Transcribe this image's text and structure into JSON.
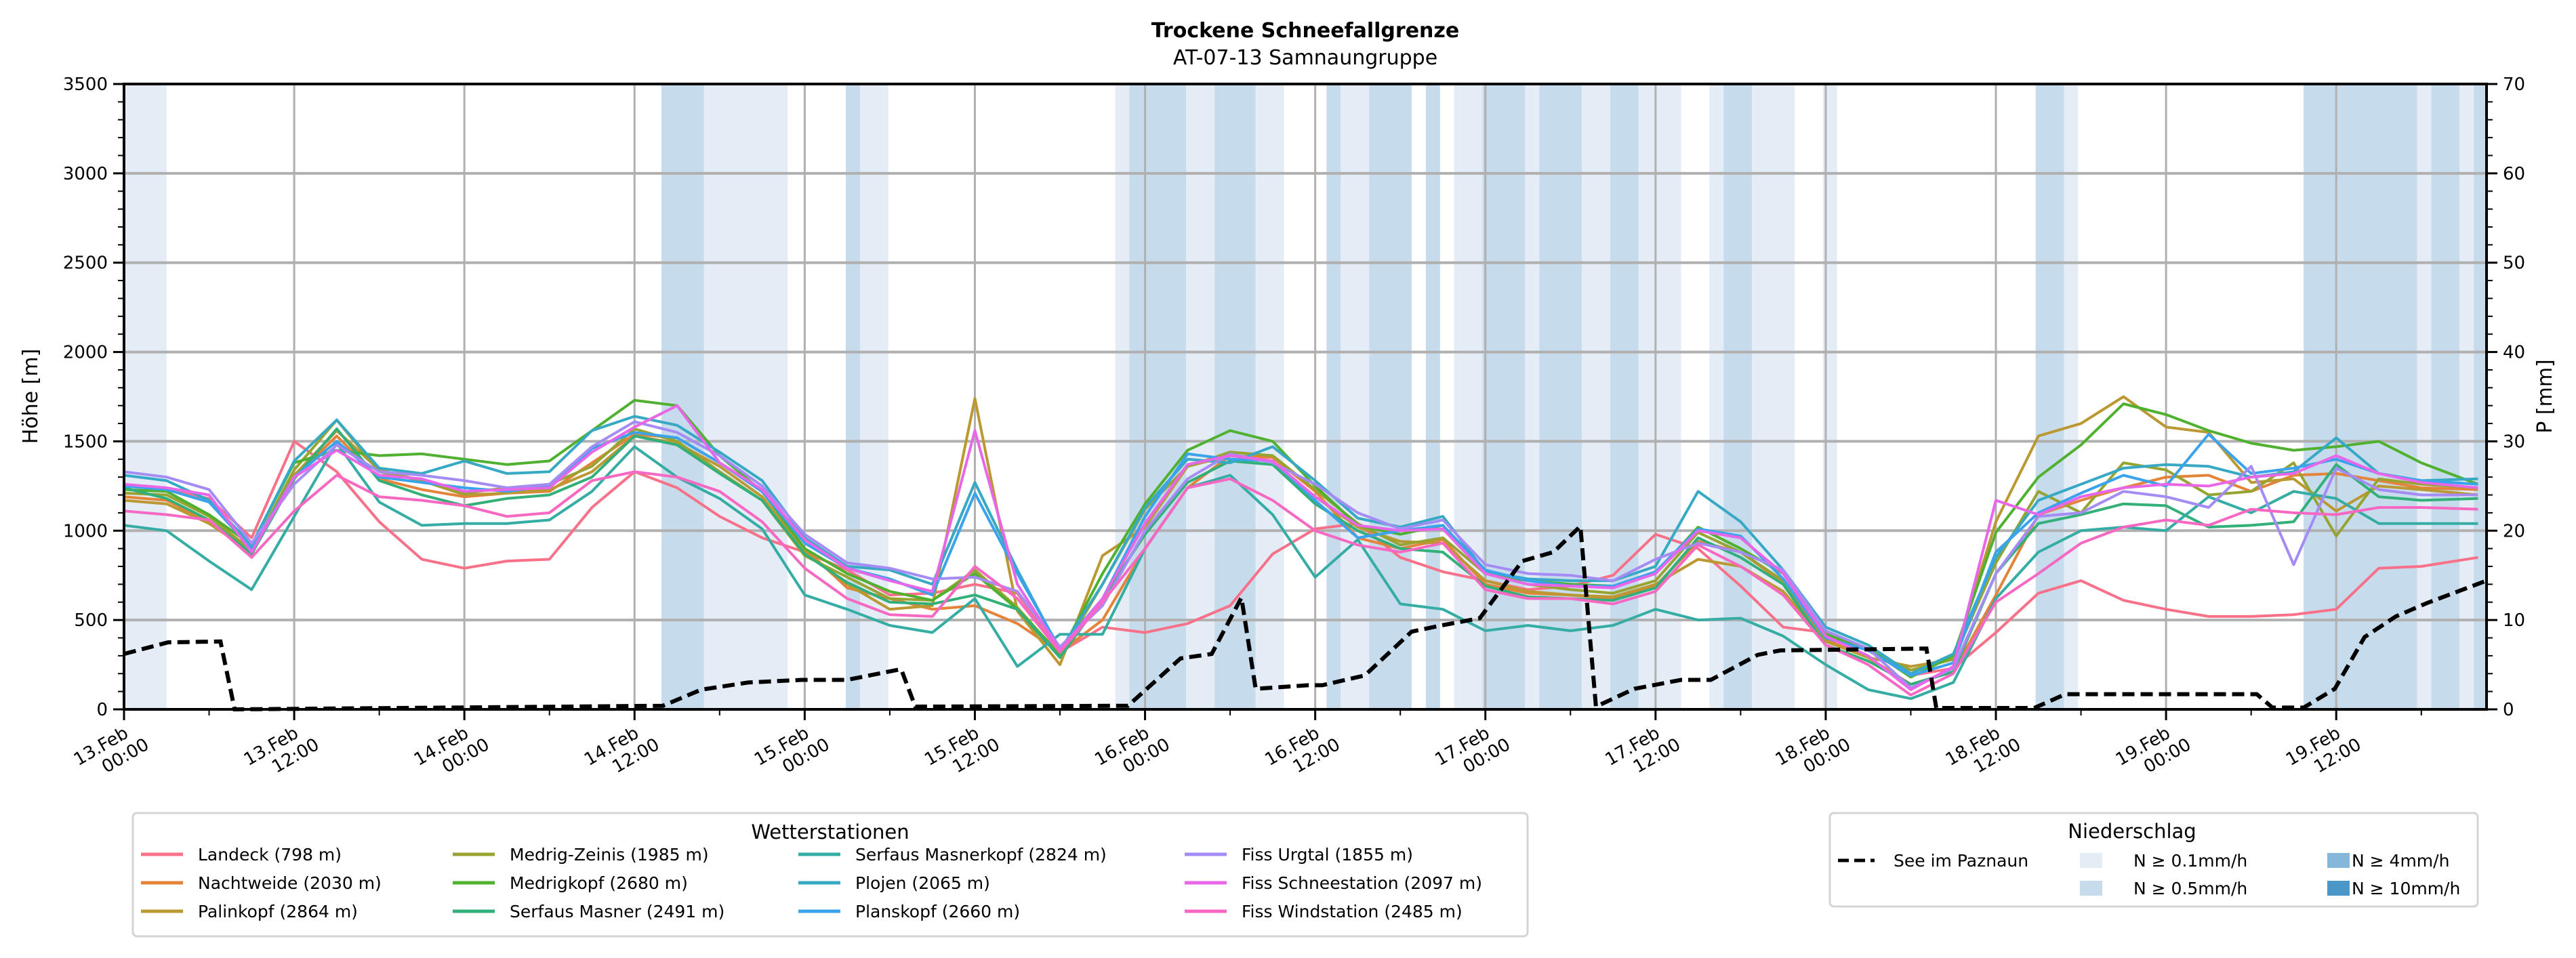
{
  "chart_data": {
    "type": "line",
    "title": "Trockene Schneefallgrenze",
    "subtitle": "AT-07-13 Samnaungruppe",
    "ylabel": "Höhe [m]",
    "y2label": "P [mm]",
    "ylim": [
      0,
      3500
    ],
    "y2lim": [
      0,
      70
    ],
    "yticks": [
      "0",
      "500",
      "1000",
      "1500",
      "2000",
      "2500",
      "3000",
      "3500"
    ],
    "y2ticks": [
      "0",
      "10",
      "20",
      "30",
      "40",
      "50",
      "60",
      "70"
    ],
    "x_unit": "hours since 13.Feb 00:00",
    "xlim_hours": [
      0,
      166.6
    ],
    "xticks": [
      {
        "h": 0,
        "l1": "13.Feb",
        "l2": "00:00"
      },
      {
        "h": 12,
        "l1": "13.Feb",
        "l2": "12:00"
      },
      {
        "h": 24,
        "l1": "14.Feb",
        "l2": "00:00"
      },
      {
        "h": 36,
        "l1": "14.Feb",
        "l2": "12:00"
      },
      {
        "h": 48,
        "l1": "15.Feb",
        "l2": "00:00"
      },
      {
        "h": 60,
        "l1": "15.Feb",
        "l2": "12:00"
      },
      {
        "h": 72,
        "l1": "16.Feb",
        "l2": "00:00"
      },
      {
        "h": 84,
        "l1": "16.Feb",
        "l2": "12:00"
      },
      {
        "h": 96,
        "l1": "17.Feb",
        "l2": "00:00"
      },
      {
        "h": 108,
        "l1": "17.Feb",
        "l2": "12:00"
      },
      {
        "h": 120,
        "l1": "18.Feb",
        "l2": "00:00"
      },
      {
        "h": 132,
        "l1": "18.Feb",
        "l2": "12:00"
      },
      {
        "h": 144,
        "l1": "19.Feb",
        "l2": "00:00"
      },
      {
        "h": 156,
        "l1": "19.Feb",
        "l2": "12:00"
      }
    ],
    "grid": true,
    "precip_bands": [
      {
        "start": 0.0,
        "end": 3.0,
        "level": 1
      },
      {
        "start": 37.9,
        "end": 40.9,
        "level": 2
      },
      {
        "start": 40.9,
        "end": 46.8,
        "level": 1
      },
      {
        "start": 50.9,
        "end": 51.9,
        "level": 2
      },
      {
        "start": 51.9,
        "end": 53.9,
        "level": 1
      },
      {
        "start": 69.9,
        "end": 70.9,
        "level": 1
      },
      {
        "start": 70.9,
        "end": 74.9,
        "level": 2
      },
      {
        "start": 74.9,
        "end": 76.9,
        "level": 1
      },
      {
        "start": 76.9,
        "end": 79.8,
        "level": 2
      },
      {
        "start": 79.8,
        "end": 81.8,
        "level": 1
      },
      {
        "start": 84.8,
        "end": 85.8,
        "level": 2
      },
      {
        "start": 85.8,
        "end": 87.8,
        "level": 1
      },
      {
        "start": 87.8,
        "end": 90.8,
        "level": 2
      },
      {
        "start": 91.8,
        "end": 92.8,
        "level": 2
      },
      {
        "start": 93.8,
        "end": 95.8,
        "level": 1
      },
      {
        "start": 95.8,
        "end": 98.8,
        "level": 2
      },
      {
        "start": 98.8,
        "end": 99.8,
        "level": 1
      },
      {
        "start": 99.8,
        "end": 102.8,
        "level": 2
      },
      {
        "start": 102.8,
        "end": 104.8,
        "level": 1
      },
      {
        "start": 104.8,
        "end": 106.8,
        "level": 2
      },
      {
        "start": 106.8,
        "end": 109.8,
        "level": 1
      },
      {
        "start": 111.8,
        "end": 112.8,
        "level": 1
      },
      {
        "start": 112.8,
        "end": 114.8,
        "level": 2
      },
      {
        "start": 114.8,
        "end": 117.8,
        "level": 1
      },
      {
        "start": 119.8,
        "end": 120.8,
        "level": 1
      },
      {
        "start": 134.8,
        "end": 136.8,
        "level": 2
      },
      {
        "start": 136.8,
        "end": 137.8,
        "level": 1
      },
      {
        "start": 153.7,
        "end": 161.7,
        "level": 2
      },
      {
        "start": 161.7,
        "end": 162.7,
        "level": 1
      },
      {
        "start": 162.7,
        "end": 164.7,
        "level": 2
      },
      {
        "start": 164.7,
        "end": 165.7,
        "level": 1
      },
      {
        "start": 165.7,
        "end": 166.6,
        "level": 2
      }
    ],
    "precip_line": {
      "name": "See im Paznaun",
      "axis": "right",
      "points": [
        [
          0,
          6.2
        ],
        [
          3.1,
          7.5
        ],
        [
          6.8,
          7.6
        ],
        [
          7.8,
          0
        ],
        [
          30.8,
          0.3
        ],
        [
          38.0,
          0.4
        ],
        [
          40.7,
          2.2
        ],
        [
          44.0,
          3.0
        ],
        [
          47.8,
          3.3
        ],
        [
          51.0,
          3.3
        ],
        [
          54.8,
          4.5
        ],
        [
          55.8,
          0.3
        ],
        [
          70.8,
          0.4
        ],
        [
          74.5,
          5.7
        ],
        [
          76.7,
          6.2
        ],
        [
          78.8,
          12.5
        ],
        [
          79.8,
          2.3
        ],
        [
          83.5,
          2.7
        ],
        [
          84.5,
          2.7
        ],
        [
          87.5,
          3.8
        ],
        [
          90.8,
          8.7
        ],
        [
          92.9,
          9.4
        ],
        [
          95.6,
          10.2
        ],
        [
          98.6,
          16.6
        ],
        [
          100.8,
          17.6
        ],
        [
          102.7,
          20.5
        ],
        [
          103.8,
          0.3
        ],
        [
          106.5,
          2.3
        ],
        [
          109.8,
          3.3
        ],
        [
          111.9,
          3.3
        ],
        [
          115.2,
          6.1
        ],
        [
          116.8,
          6.6
        ],
        [
          127.1,
          6.8
        ],
        [
          127.8,
          0.15
        ],
        [
          134.7,
          0.15
        ],
        [
          136.9,
          1.7
        ],
        [
          150.4,
          1.7
        ],
        [
          151.5,
          0.2
        ],
        [
          153.7,
          0.2
        ],
        [
          155.9,
          2.3
        ],
        [
          158.0,
          8.1
        ],
        [
          160.2,
          10.4
        ],
        [
          162.4,
          11.9
        ],
        [
          166.6,
          14.4
        ]
      ]
    },
    "station_times": [
      0,
      3,
      6,
      9,
      12,
      15,
      18,
      21,
      24,
      27,
      30,
      33,
      36,
      39,
      42,
      45,
      48,
      51,
      54,
      57,
      60,
      63,
      66,
      69,
      72,
      75,
      78,
      81,
      84,
      87,
      90,
      93,
      96,
      99,
      102,
      105,
      108,
      111,
      114,
      117,
      120,
      123,
      126,
      129,
      132,
      135,
      138,
      141,
      144,
      147,
      150,
      153,
      156,
      159,
      162,
      166
    ],
    "series": [
      {
        "name": "Landeck (798 m)",
        "color": "#f77189",
        "values": [
          1260,
          1230,
          1180,
          960,
          1500,
          1330,
          1050,
          840,
          790,
          830,
          840,
          1130,
          1330,
          1240,
          1080,
          960,
          880,
          780,
          640,
          650,
          700,
          650,
          320,
          460,
          430,
          480,
          580,
          870,
          1010,
          1040,
          850,
          770,
          720,
          670,
          690,
          750,
          980,
          900,
          690,
          460,
          430,
          330,
          190,
          230,
          430,
          650,
          720,
          610,
          560,
          520,
          520,
          530,
          560,
          790,
          800,
          850
        ]
      },
      {
        "name": "Nachtweide (2030 m)",
        "color": "#e4833a",
        "values": [
          1190,
          1170,
          1050,
          900,
          1300,
          1530,
          1290,
          1230,
          1190,
          1210,
          1220,
          1380,
          1540,
          1520,
          1380,
          1220,
          900,
          680,
          620,
          560,
          580,
          480,
          320,
          500,
          900,
          1240,
          1420,
          1410,
          1220,
          960,
          900,
          950,
          700,
          650,
          640,
          620,
          690,
          940,
          880,
          710,
          390,
          290,
          140,
          210,
          640,
          1090,
          1170,
          1240,
          1300,
          1310,
          1220,
          1310,
          1320,
          1280,
          1240,
          1230
        ]
      },
      {
        "name": "Palinkopf (2864 m)",
        "color": "#bb9832",
        "values": [
          1170,
          1150,
          1040,
          880,
          1310,
          1560,
          1340,
          1280,
          1200,
          1210,
          1230,
          1330,
          1530,
          1490,
          1360,
          1190,
          880,
          700,
          560,
          580,
          1740,
          550,
          250,
          860,
          1020,
          1360,
          1420,
          1390,
          1190,
          1020,
          940,
          930,
          720,
          660,
          640,
          630,
          700,
          840,
          800,
          660,
          380,
          290,
          240,
          280,
          1050,
          1530,
          1600,
          1750,
          1580,
          1550,
          1270,
          1290,
          1110,
          1250,
          1230,
          1200
        ]
      },
      {
        "name": "Medrig-Zeinis (1985 m)",
        "color": "#97a431",
        "values": [
          1210,
          1200,
          1080,
          890,
          1340,
          1620,
          1330,
          1280,
          1210,
          1240,
          1260,
          1360,
          1570,
          1500,
          1330,
          1170,
          860,
          740,
          620,
          610,
          780,
          570,
          300,
          700,
          1120,
          1360,
          1440,
          1420,
          1230,
          1040,
          920,
          960,
          760,
          700,
          670,
          650,
          720,
          990,
          880,
          720,
          410,
          330,
          220,
          280,
          820,
          1220,
          1100,
          1380,
          1340,
          1200,
          1220,
          1380,
          970,
          1290,
          1260,
          1240
        ]
      },
      {
        "name": "Medrigkopf (2680 m)",
        "color": "#50b131",
        "values": [
          1230,
          1220,
          1090,
          920,
          1380,
          1450,
          1420,
          1430,
          1400,
          1370,
          1390,
          1560,
          1730,
          1700,
          1420,
          1220,
          900,
          760,
          660,
          610,
          760,
          560,
          310,
          760,
          1150,
          1450,
          1560,
          1500,
          1250,
          1030,
          980,
          1030,
          760,
          720,
          700,
          690,
          760,
          1020,
          900,
          760,
          420,
          340,
          180,
          300,
          990,
          1300,
          1480,
          1710,
          1650,
          1560,
          1490,
          1450,
          1470,
          1500,
          1380,
          1260
        ]
      },
      {
        "name": "Serfaus Masner (2491 m)",
        "color": "#33b07a",
        "values": [
          1240,
          1180,
          1060,
          870,
          1290,
          1570,
          1280,
          1200,
          1140,
          1180,
          1200,
          1300,
          1530,
          1480,
          1320,
          1170,
          870,
          710,
          600,
          590,
          640,
          560,
          290,
          620,
          980,
          1270,
          1390,
          1370,
          1150,
          1000,
          900,
          880,
          690,
          630,
          620,
          610,
          680,
          960,
          850,
          700,
          360,
          270,
          140,
          210,
          760,
          1040,
          1090,
          1150,
          1140,
          1020,
          1030,
          1050,
          1370,
          1190,
          1170,
          1180
        ]
      },
      {
        "name": "Serfaus Masnerkopf (2824 m)",
        "color": "#36ada4",
        "values": [
          1030,
          1000,
          830,
          670,
          1080,
          1490,
          1160,
          1030,
          1040,
          1040,
          1060,
          1220,
          1470,
          1300,
          1180,
          1010,
          640,
          560,
          470,
          430,
          620,
          240,
          420,
          420,
          900,
          1240,
          1310,
          1090,
          740,
          950,
          590,
          560,
          440,
          470,
          440,
          470,
          560,
          500,
          510,
          410,
          250,
          110,
          60,
          150,
          620,
          880,
          1000,
          1020,
          1000,
          1190,
          1100,
          1220,
          1180,
          1040,
          1040,
          1040
        ]
      },
      {
        "name": "Plojen (2065 m)",
        "color": "#38a9c5",
        "values": [
          1310,
          1280,
          1170,
          920,
          1390,
          1620,
          1350,
          1320,
          1390,
          1320,
          1330,
          1560,
          1640,
          1590,
          1440,
          1280,
          960,
          800,
          780,
          700,
          1270,
          780,
          330,
          700,
          1130,
          1400,
          1380,
          1470,
          1280,
          1070,
          1020,
          1080,
          770,
          730,
          720,
          720,
          800,
          1220,
          1050,
          780,
          460,
          360,
          200,
          310,
          850,
          1170,
          1260,
          1350,
          1370,
          1360,
          1300,
          1330,
          1520,
          1320,
          1280,
          1290
        ]
      },
      {
        "name": "Planskopf (2660 m)",
        "color": "#3ba3ec",
        "values": [
          1250,
          1230,
          1160,
          900,
          1300,
          1500,
          1300,
          1270,
          1240,
          1220,
          1250,
          1460,
          1550,
          1520,
          1380,
          1220,
          930,
          790,
          730,
          640,
          1210,
          760,
          340,
          620,
          1080,
          1430,
          1400,
          1390,
          1170,
          960,
          1000,
          1030,
          780,
          720,
          690,
          690,
          770,
          1010,
          970,
          730,
          400,
          330,
          190,
          260,
          880,
          1100,
          1210,
          1310,
          1250,
          1540,
          1320,
          1350,
          1400,
          1320,
          1280,
          1260
        ]
      },
      {
        "name": "Fiss Urgtal  (1855 m)",
        "color": "#a48cf4",
        "values": [
          1330,
          1300,
          1230,
          930,
          1260,
          1480,
          1330,
          1310,
          1280,
          1240,
          1260,
          1470,
          1610,
          1550,
          1420,
          1250,
          980,
          820,
          790,
          730,
          740,
          660,
          350,
          580,
          1000,
          1290,
          1430,
          1380,
          1260,
          1100,
          1010,
          1060,
          810,
          760,
          750,
          720,
          840,
          930,
          880,
          780,
          440,
          340,
          120,
          230,
          760,
          1080,
          1100,
          1220,
          1190,
          1130,
          1360,
          810,
          1350,
          1230,
          1200,
          1200
        ]
      },
      {
        "name": "Fiss Schneestation (2097 m)",
        "color": "#e866e8",
        "values": [
          1260,
          1240,
          1200,
          880,
          1300,
          1450,
          1310,
          1290,
          1220,
          1230,
          1240,
          1440,
          1580,
          1700,
          1380,
          1230,
          950,
          790,
          720,
          660,
          1560,
          700,
          330,
          620,
          1040,
          1370,
          1420,
          1390,
          1190,
          1030,
          1000,
          1010,
          760,
          700,
          690,
          680,
          760,
          1000,
          960,
          760,
          410,
          300,
          110,
          240,
          1170,
          1090,
          1190,
          1240,
          1260,
          1250,
          1300,
          1320,
          1420,
          1320,
          1270,
          1240
        ]
      },
      {
        "name": "Fiss Windstation (2485 m)",
        "color": "#f668c2",
        "values": [
          1110,
          1090,
          1060,
          850,
          1110,
          1310,
          1190,
          1170,
          1140,
          1080,
          1100,
          1280,
          1330,
          1300,
          1220,
          1050,
          790,
          620,
          530,
          520,
          800,
          620,
          320,
          600,
          900,
          1240,
          1290,
          1170,
          1000,
          920,
          880,
          930,
          670,
          620,
          620,
          590,
          660,
          920,
          800,
          640,
          360,
          250,
          80,
          200,
          600,
          760,
          930,
          1020,
          1060,
          1030,
          1120,
          1100,
          1090,
          1130,
          1130,
          1120
        ]
      }
    ]
  },
  "legend_stations": {
    "title": "Wetterstationen"
  },
  "legend_precip": {
    "title": "Niederschlag",
    "line_label": "See im Paznaun",
    "bands": [
      {
        "label": "N ≥ 0.1mm/h",
        "color": "#e4ecf6"
      },
      {
        "label": "N ≥ 0.5mm/h",
        "color": "#c6dbec"
      },
      {
        "label": "N ≥ 4mm/h",
        "color": "#84b7da"
      },
      {
        "label": "N ≥ 10mm/h",
        "color": "#4a97c8"
      }
    ]
  }
}
